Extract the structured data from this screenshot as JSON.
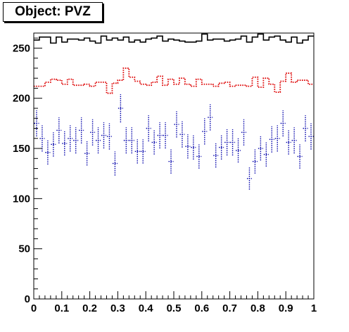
{
  "chart_data": {
    "type": "step",
    "title": "Object: PVZ",
    "xlim": [
      0,
      1
    ],
    "ylim": [
      0,
      265
    ],
    "bins": 50,
    "x_ticks": [
      {
        "v": 0,
        "label": "0"
      },
      {
        "v": 0.1,
        "label": "0.1"
      },
      {
        "v": 0.2,
        "label": "0.2"
      },
      {
        "v": 0.3,
        "label": "0.3"
      },
      {
        "v": 0.4,
        "label": "0.4"
      },
      {
        "v": 0.5,
        "label": "0.5"
      },
      {
        "v": 0.6,
        "label": "0.6"
      },
      {
        "v": 0.7,
        "label": "0.7"
      },
      {
        "v": 0.8,
        "label": "0.8"
      },
      {
        "v": 0.9,
        "label": "0.9"
      },
      {
        "v": 1,
        "label": "1"
      }
    ],
    "y_ticks": [
      {
        "v": 0,
        "label": "0"
      },
      {
        "v": 50,
        "label": "50"
      },
      {
        "v": 100,
        "label": "100"
      },
      {
        "v": 150,
        "label": "150"
      },
      {
        "v": 200,
        "label": "200"
      },
      {
        "v": 250,
        "label": "250"
      }
    ],
    "series": [
      {
        "style": "solid-step",
        "color": "#000000",
        "values": [
          258,
          261,
          261,
          255,
          261,
          256,
          259,
          259,
          258,
          260,
          257,
          255,
          262,
          258,
          260,
          258,
          261,
          256,
          258,
          256,
          259,
          260,
          262,
          257,
          259,
          258,
          257,
          256,
          256,
          257,
          264,
          258,
          259,
          259,
          257,
          258,
          259,
          262,
          256,
          261,
          264,
          258,
          261,
          262,
          258,
          256,
          261,
          255,
          258,
          262
        ]
      },
      {
        "style": "dotted-step",
        "color": "#dd0000",
        "values": [
          212,
          212,
          216,
          219,
          218,
          214,
          219,
          213,
          213,
          214,
          212,
          216,
          216,
          205,
          215,
          218,
          230,
          221,
          217,
          214,
          213,
          216,
          222,
          213,
          219,
          214,
          220,
          214,
          212,
          219,
          214,
          214,
          212,
          215,
          216,
          212,
          213,
          213,
          212,
          221,
          211,
          220,
          214,
          206,
          217,
          225,
          216,
          218,
          218,
          214
        ]
      },
      {
        "style": "error-bars",
        "color": "#0000aa",
        "values": [
          175,
          160,
          146,
          154,
          168,
          155,
          160,
          158,
          168,
          145,
          166,
          158,
          163,
          162,
          135,
          190,
          158,
          158,
          147,
          147,
          170,
          156,
          163,
          163,
          137,
          174,
          164,
          152,
          151,
          142,
          167,
          181,
          143,
          151,
          156,
          156,
          148,
          166,
          120,
          137,
          150,
          144,
          159,
          160,
          175,
          156,
          158,
          142,
          170,
          162
        ],
        "errors": [
          13,
          13,
          12,
          12,
          13,
          12,
          13,
          13,
          13,
          12,
          13,
          13,
          13,
          13,
          12,
          14,
          13,
          13,
          12,
          12,
          13,
          12,
          13,
          13,
          12,
          13,
          13,
          12,
          12,
          12,
          13,
          13,
          12,
          12,
          13,
          13,
          12,
          13,
          11,
          12,
          12,
          12,
          13,
          13,
          13,
          12,
          13,
          12,
          13,
          13
        ]
      }
    ]
  }
}
